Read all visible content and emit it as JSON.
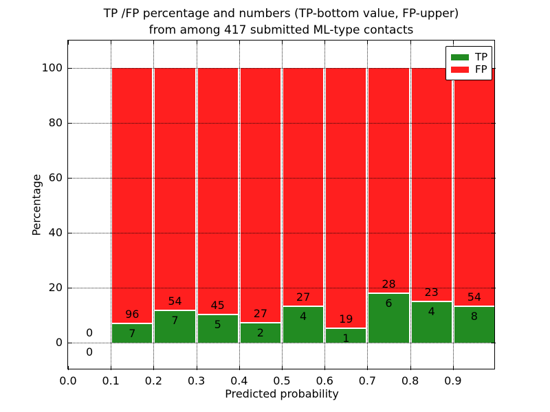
{
  "title": {
    "line1": "TP /FP percentage and numbers (TP-bottom value, FP-upper)",
    "line2": "from among 417 submitted ML-type contacts"
  },
  "chart_data": {
    "type": "bar",
    "stacked": true,
    "normalized_to_percent": 100,
    "title": "TP /FP percentage and numbers (TP-bottom value, FP-upper) from among 417 submitted ML-type contacts",
    "xlabel": "Predicted probability",
    "ylabel": "Percentage",
    "total_submitted": 417,
    "bin_edges": [
      0.0,
      0.1,
      0.2,
      0.3,
      0.4,
      0.5,
      0.6,
      0.7,
      0.8,
      0.9,
      1.0
    ],
    "categories": [
      "0.0-0.1",
      "0.1-0.2",
      "0.2-0.3",
      "0.3-0.4",
      "0.4-0.5",
      "0.5-0.6",
      "0.6-0.7",
      "0.7-0.8",
      "0.8-0.9",
      "0.9-1.0"
    ],
    "series": [
      {
        "name": "TP",
        "color": "#228B22",
        "counts": [
          0,
          7,
          7,
          5,
          2,
          4,
          1,
          6,
          4,
          8
        ]
      },
      {
        "name": "FP",
        "color": "#FF1F1F",
        "counts": [
          0,
          96,
          54,
          45,
          27,
          27,
          19,
          28,
          23,
          54
        ]
      }
    ],
    "tp_percent": [
      0,
      6.8,
      11.48,
      10.0,
      6.9,
      12.9,
      5.0,
      17.65,
      14.81,
      12.9
    ],
    "x_ticks": [
      "0.0",
      "0.1",
      "0.2",
      "0.3",
      "0.4",
      "0.5",
      "0.6",
      "0.7",
      "0.8",
      "0.9"
    ],
    "y_ticks": [
      0,
      20,
      40,
      60,
      80,
      100
    ],
    "xlim": [
      0.0,
      1.0
    ],
    "ylim": [
      -10,
      110
    ],
    "grid": "dotted",
    "legend": {
      "position": "upper right",
      "entries": [
        "TP",
        "FP"
      ]
    }
  }
}
